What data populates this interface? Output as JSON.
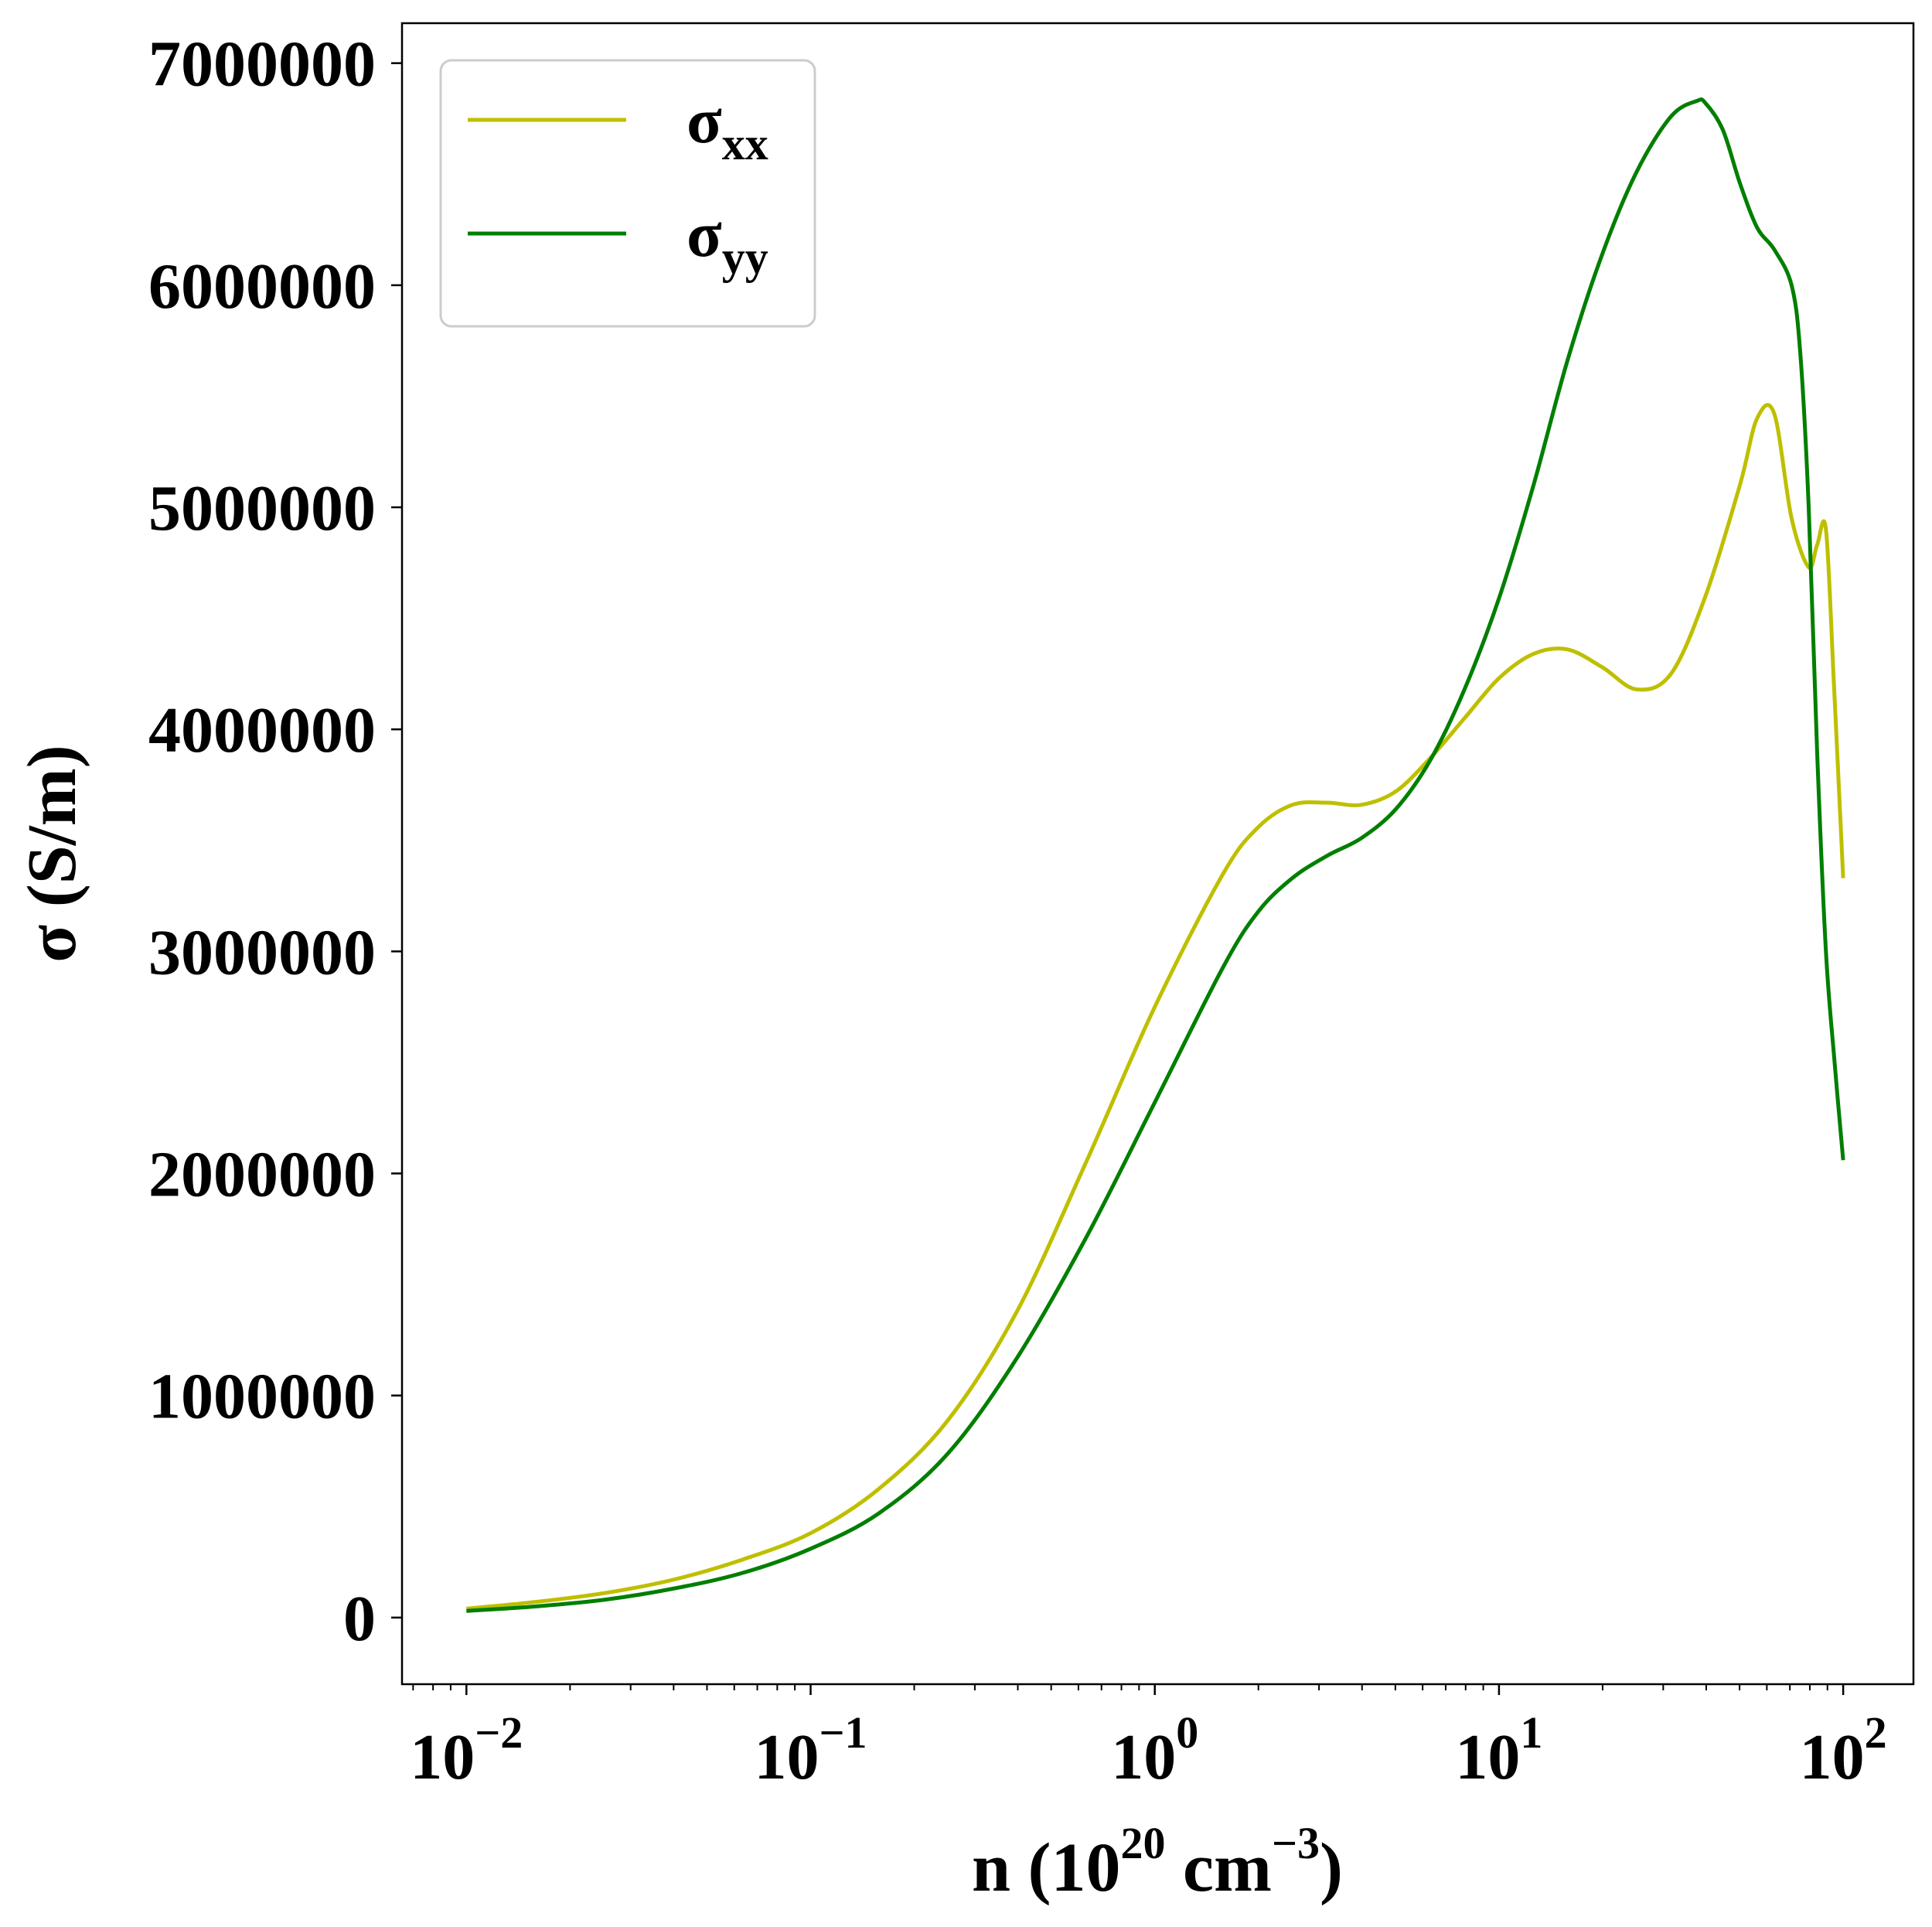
{
  "chart_data": {
    "type": "line",
    "xscale": "log",
    "xlim": [
      0.0065,
      160
    ],
    "ylim": [
      -300000,
      7180000
    ],
    "xlabel": {
      "base": "n (10",
      "exp1": "20",
      "mid": " cm",
      "exp2": "−3",
      "end": ")"
    },
    "ylabel": "σ (S/m)",
    "grid": false,
    "legend_position": "top-left",
    "y_ticks": [
      {
        "value": 0,
        "label": "0"
      },
      {
        "value": 1000000,
        "label": "1000000"
      },
      {
        "value": 2000000,
        "label": "2000000"
      },
      {
        "value": 3000000,
        "label": "3000000"
      },
      {
        "value": 4000000,
        "label": "4000000"
      },
      {
        "value": 5000000,
        "label": "5000000"
      },
      {
        "value": 6000000,
        "label": "6000000"
      },
      {
        "value": 7000000,
        "label": "7000000"
      }
    ],
    "x_ticks": [
      {
        "value": 0.01,
        "base": "10",
        "exp": "−2"
      },
      {
        "value": 0.1,
        "base": "10",
        "exp": "−1"
      },
      {
        "value": 1,
        "base": "10",
        "exp": "0"
      },
      {
        "value": 10,
        "base": "10",
        "exp": "1"
      },
      {
        "value": 100,
        "base": "10",
        "exp": "2"
      }
    ],
    "series": [
      {
        "name": "σ",
        "name_sub": "xx",
        "color": "#bfbf00",
        "x": [
          0.01,
          0.0158,
          0.0251,
          0.0398,
          0.0631,
          0.1,
          0.158,
          0.251,
          0.398,
          0.631,
          1.0,
          1.58,
          2.0,
          2.51,
          3.16,
          3.98,
          5.01,
          6.31,
          7.94,
          10.0,
          12.6,
          15.8,
          19.95,
          25.1,
          31.6,
          39.8,
          50.1,
          56.2,
          63.1,
          70.8,
          79.4,
          84.0,
          89.1,
          94.0,
          100.0
        ],
        "y": [
          40000,
          70000,
          110000,
          170000,
          260000,
          380000,
          580000,
          890000,
          1380000,
          2050000,
          2750000,
          3350000,
          3560000,
          3660000,
          3670000,
          3660000,
          3720000,
          3870000,
          4050000,
          4230000,
          4340000,
          4360000,
          4280000,
          4180000,
          4250000,
          4600000,
          5100000,
          5400000,
          5420000,
          4950000,
          4730000,
          4830000,
          4900000,
          4200000,
          3330000
        ]
      },
      {
        "name": "σ",
        "name_sub": "yy",
        "color": "#007f00",
        "x": [
          0.01,
          0.0158,
          0.0251,
          0.0398,
          0.0631,
          0.1,
          0.158,
          0.251,
          0.398,
          0.631,
          1.0,
          1.58,
          2.0,
          2.51,
          3.16,
          3.98,
          5.01,
          6.31,
          7.94,
          10.0,
          12.6,
          15.8,
          19.95,
          25.1,
          31.6,
          37.6,
          39.8,
          44.7,
          50.1,
          56.2,
          63.1,
          70.8,
          75.0,
          79.4,
          84.0,
          89.1,
          94.4,
          100.0
        ],
        "y": [
          30000,
          50000,
          80000,
          130000,
          200000,
          310000,
          470000,
          740000,
          1170000,
          1710000,
          2320000,
          2930000,
          3180000,
          3330000,
          3430000,
          3510000,
          3640000,
          3860000,
          4180000,
          4590000,
          5100000,
          5660000,
          6140000,
          6510000,
          6760000,
          6830000,
          6820000,
          6700000,
          6460000,
          6260000,
          6160000,
          6000000,
          5700000,
          5000000,
          3900000,
          3000000,
          2500000,
          2060000
        ]
      }
    ]
  }
}
